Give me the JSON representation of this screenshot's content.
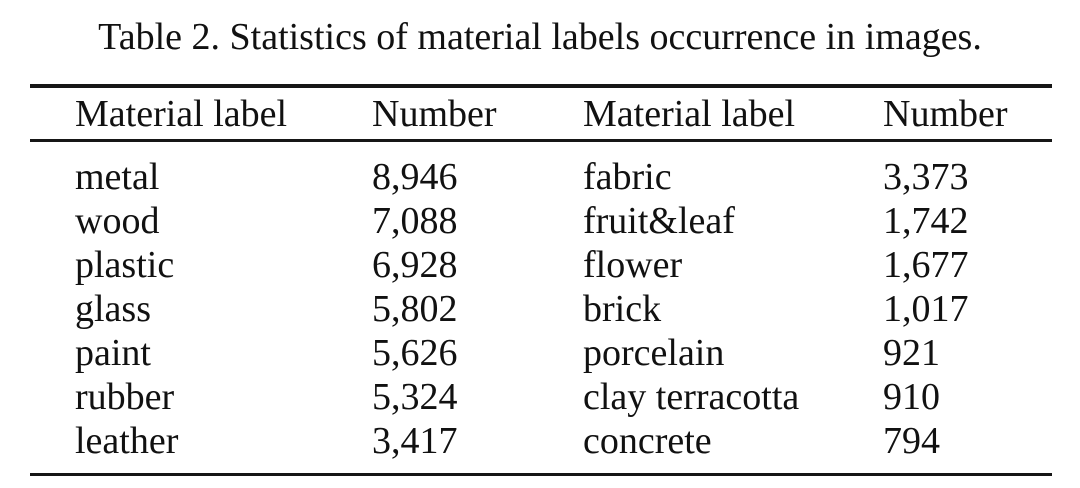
{
  "page": {
    "caption": "Table 2. Statistics of material labels occurrence in images."
  },
  "table": {
    "headers": [
      "Material label",
      "Number",
      "Material label",
      "Number"
    ],
    "rows": [
      [
        "metal",
        "8,946",
        "fabric",
        "3,373"
      ],
      [
        "wood",
        "7,088",
        "fruit&leaf",
        "1,742"
      ],
      [
        "plastic",
        "6,928",
        "flower",
        "1,677"
      ],
      [
        "glass",
        "5,802",
        "brick",
        "1,017"
      ],
      [
        "paint",
        "5,626",
        "porcelain",
        "921"
      ],
      [
        "rubber",
        "5,324",
        "clay terracotta",
        "910"
      ],
      [
        "leather",
        "3,417",
        "concrete",
        "794"
      ]
    ]
  },
  "chart_data": {
    "type": "table",
    "title": "Table 2. Statistics of material labels occurrence in images.",
    "columns": [
      "Material label",
      "Number"
    ],
    "records": [
      {
        "material": "metal",
        "number": 8946
      },
      {
        "material": "wood",
        "number": 7088
      },
      {
        "material": "plastic",
        "number": 6928
      },
      {
        "material": "glass",
        "number": 5802
      },
      {
        "material": "paint",
        "number": 5626
      },
      {
        "material": "rubber",
        "number": 5324
      },
      {
        "material": "leather",
        "number": 3417
      },
      {
        "material": "fabric",
        "number": 3373
      },
      {
        "material": "fruit&leaf",
        "number": 1742
      },
      {
        "material": "flower",
        "number": 1677
      },
      {
        "material": "brick",
        "number": 1017
      },
      {
        "material": "porcelain",
        "number": 921
      },
      {
        "material": "clay terracotta",
        "number": 910
      },
      {
        "material": "concrete",
        "number": 794
      }
    ]
  }
}
